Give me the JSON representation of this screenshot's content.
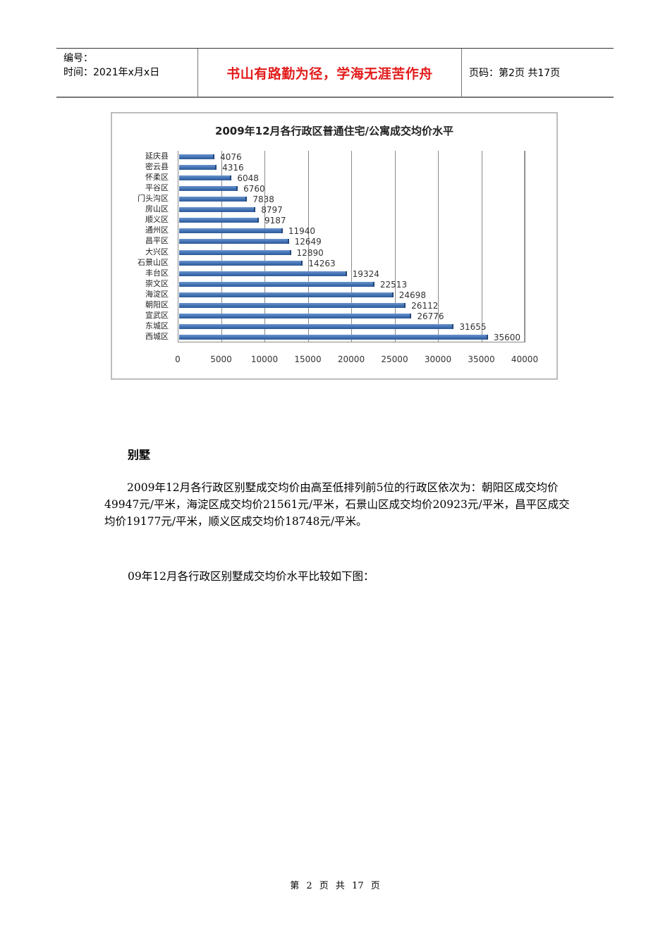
{
  "header": {
    "number_label": "编号：",
    "time_label": "时间：2021年x月x日",
    "motto": "书山有路勤为径，学海无涯苦作舟",
    "page_info": "页码：第2页  共17页"
  },
  "chart_data": {
    "type": "bar",
    "orientation": "horizontal",
    "title": "2009年12月各行政区普通住宅/公寓成交均价水平",
    "xlabel": "",
    "ylabel": "",
    "xlim": [
      0,
      40000
    ],
    "x_ticks": [
      "0",
      "5000",
      "10000",
      "15000",
      "20000",
      "25000",
      "30000",
      "35000",
      "40000"
    ],
    "grid": true,
    "legend": "none",
    "bar_color": "#4472b4",
    "categories": [
      "延庆县",
      "密云县",
      "怀柔区",
      "平谷区",
      "门头沟区",
      "房山区",
      "顺义区",
      "通州区",
      "昌平区",
      "大兴区",
      "石景山区",
      "丰台区",
      "崇文区",
      "海淀区",
      "朝阳区",
      "宣武区",
      "东城区",
      "西城区"
    ],
    "values": [
      4076,
      4316,
      6048,
      6760,
      7838,
      8797,
      9187,
      11940,
      12649,
      12890,
      14263,
      19324,
      22513,
      24698,
      26112,
      26776,
      31655,
      35600
    ]
  },
  "section": {
    "heading": "别墅",
    "paragraph": "2009年12月各行政区别墅成交均价由高至低排列前5位的行政区依次为：朝阳区成交均价49947元/平米，海淀区成交均价21561元/平米，石景山区成交均价20923元/平米，昌平区成交均价19177元/平米，顺义区成交均价18748元/平米。",
    "caption": "09年12月各行政区别墅成交均价水平比较如下图："
  },
  "footer": {
    "page_text": "第 2 页 共 17 页"
  }
}
